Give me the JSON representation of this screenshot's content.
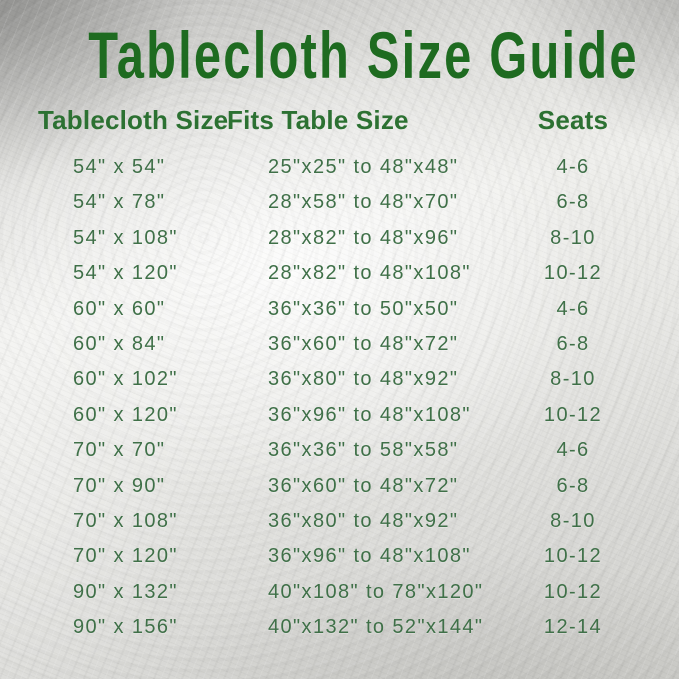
{
  "chart_data": {
    "type": "table",
    "title": "Tablecloth Size Guide",
    "columns": [
      "Tablecloth Size",
      "Fits Table Size",
      "Seats"
    ],
    "rows": [
      {
        "size": "54\" x 54\"",
        "fits": "25\"x25\" to 48\"x48\"",
        "seats": "4-6"
      },
      {
        "size": "54\" x 78\"",
        "fits": "28\"x58\" to 48\"x70\"",
        "seats": "6-8"
      },
      {
        "size": "54\" x 108\"",
        "fits": "28\"x82\" to 48\"x96\"",
        "seats": "8-10"
      },
      {
        "size": "54\" x 120\"",
        "fits": "28\"x82\" to 48\"x108\"",
        "seats": "10-12"
      },
      {
        "size": "60\" x 60\"",
        "fits": "36\"x36\" to 50\"x50\"",
        "seats": "4-6"
      },
      {
        "size": "60\" x 84\"",
        "fits": "36\"x60\" to 48\"x72\"",
        "seats": "6-8"
      },
      {
        "size": "60\" x 102\"",
        "fits": "36\"x80\" to 48\"x92\"",
        "seats": "8-10"
      },
      {
        "size": "60\" x 120\"",
        "fits": "36\"x96\" to 48\"x108\"",
        "seats": "10-12"
      },
      {
        "size": "70\" x 70\"",
        "fits": "36\"x36\" to 58\"x58\"",
        "seats": "4-6"
      },
      {
        "size": "70\" x 90\"",
        "fits": "36\"x60\" to 48\"x72\"",
        "seats": "6-8"
      },
      {
        "size": "70\" x 108\"",
        "fits": "36\"x80\" to 48\"x92\"",
        "seats": "8-10"
      },
      {
        "size": "70\" x 120\"",
        "fits": "36\"x96\" to 48\"x108\"",
        "seats": "10-12"
      },
      {
        "size": "90\" x 132\"",
        "fits": "40\"x108\" to 78\"x120\"",
        "seats": "10-12"
      },
      {
        "size": "90\" x 156\"",
        "fits": "40\"x132\" to 52\"x144\"",
        "seats": "12-14"
      }
    ],
    "layout": {
      "grid": "off",
      "legend": "none"
    }
  },
  "colors": {
    "title_green": "#1e6b20",
    "header_green": "#2c7132",
    "data_green": "#3f7048",
    "background_silver": "#d9d9d6"
  }
}
